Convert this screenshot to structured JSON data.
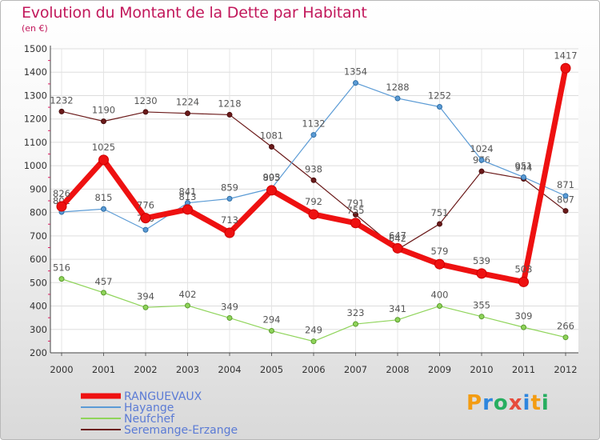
{
  "chart_data": {
    "type": "line",
    "title": "Evolution du Montant de la Dette par Habitant",
    "subtitle": "(en €)",
    "categories": [
      "2000",
      "2001",
      "2002",
      "2003",
      "2004",
      "2005",
      "2006",
      "2007",
      "2008",
      "2009",
      "2010",
      "2011",
      "2012"
    ],
    "ylim": [
      200,
      1500
    ],
    "yticks": [
      200,
      300,
      400,
      500,
      600,
      700,
      800,
      900,
      1000,
      1100,
      1200,
      1300,
      1400,
      1500
    ],
    "grid": true,
    "legend_position": "bottom-left",
    "series": [
      {
        "name": "Seremange-Erzange",
        "color": "#6b1a1a",
        "values": [
          1232,
          1190,
          1230,
          1224,
          1218,
          1081,
          938,
          791,
          642,
          751,
          976,
          944,
          807
        ]
      },
      {
        "name": "Neufchef",
        "color": "#8fd45a",
        "values": [
          516,
          457,
          394,
          402,
          349,
          294,
          249,
          323,
          341,
          400,
          355,
          309,
          266
        ]
      },
      {
        "name": "Hayange",
        "color": "#5b9bd5",
        "values": [
          802,
          815,
          726,
          841,
          859,
          903,
          1132,
          1354,
          1288,
          1252,
          1024,
          951,
          871
        ]
      },
      {
        "name": "RANGUEVAUX",
        "color": "#ee1111",
        "values": [
          826,
          1025,
          776,
          813,
          713,
          895,
          792,
          755,
          647,
          579,
          539,
          503,
          1417
        ]
      }
    ]
  },
  "legend": {
    "items": [
      {
        "name": "RANGUEVAUX",
        "color": "#ee1111"
      },
      {
        "name": "Hayange",
        "color": "#5b9bd5"
      },
      {
        "name": "Neufchef",
        "color": "#8fd45a"
      },
      {
        "name": "Seremange-Erzange",
        "color": "#6b1a1a"
      }
    ]
  },
  "logo": {
    "text": "Proxiti",
    "letters": [
      {
        "ch": "P",
        "color": "#f39c12"
      },
      {
        "ch": "r",
        "color": "#2e86de"
      },
      {
        "ch": "o",
        "color": "#27ae60"
      },
      {
        "ch": "x",
        "color": "#e74c3c"
      },
      {
        "ch": "i",
        "color": "#2e86de"
      },
      {
        "ch": "t",
        "color": "#f39c12"
      },
      {
        "ch": "i",
        "color": "#27ae60"
      }
    ]
  }
}
